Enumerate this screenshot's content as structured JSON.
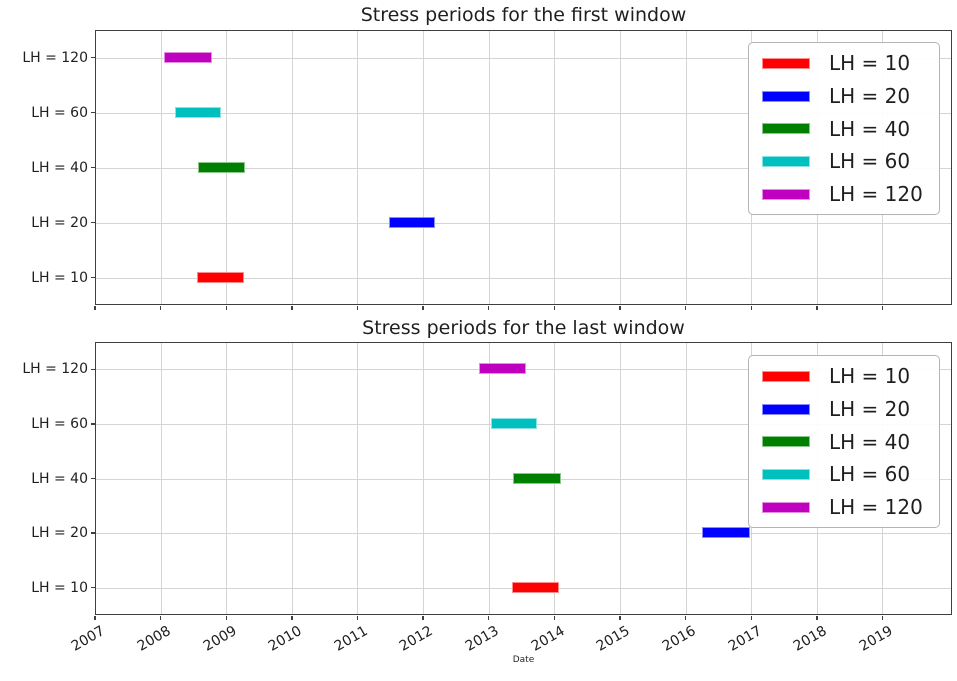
{
  "figure": {
    "xlabel": "Date",
    "background": "#ffffff",
    "grid_color": "#d4d4d4",
    "spine_color": "#3f3f3f"
  },
  "chart_data": [
    {
      "type": "bar",
      "subtype": "horizontal_interval",
      "title": "Stress periods for the first window",
      "categories": [
        "LH = 10",
        "LH = 20",
        "LH = 40",
        "LH = 60",
        "LH = 120"
      ],
      "x_ticks": [
        2007,
        2008,
        2009,
        2010,
        2011,
        2012,
        2013,
        2014,
        2015,
        2016,
        2017,
        2018,
        2019
      ],
      "xlim": [
        2007,
        2020.06
      ],
      "grid": true,
      "legend_position": "upper right",
      "show_x_tick_labels": false,
      "bars": [
        {
          "category": "LH = 10",
          "color": "#ff0000",
          "start_year": 2008.57,
          "end_year": 2009.27
        },
        {
          "category": "LH = 20",
          "color": "#0000ff",
          "start_year": 2011.51,
          "end_year": 2012.18
        },
        {
          "category": "LH = 40",
          "color": "#008000",
          "start_year": 2008.59,
          "end_year": 2009.28
        },
        {
          "category": "LH = 60",
          "color": "#00bfbf",
          "start_year": 2008.24,
          "end_year": 2008.92
        },
        {
          "category": "LH = 120",
          "color": "#bf00bf",
          "start_year": 2008.07,
          "end_year": 2008.78
        }
      ],
      "legend_entries": [
        {
          "label": "LH = 10",
          "color": "#ff0000"
        },
        {
          "label": "LH = 20",
          "color": "#0000ff"
        },
        {
          "label": "LH = 40",
          "color": "#008000"
        },
        {
          "label": "LH = 60",
          "color": "#00bfbf"
        },
        {
          "label": "LH = 120",
          "color": "#bf00bf"
        }
      ]
    },
    {
      "type": "bar",
      "subtype": "horizontal_interval",
      "title": "Stress periods for the last window",
      "categories": [
        "LH = 10",
        "LH = 20",
        "LH = 40",
        "LH = 60",
        "LH = 120"
      ],
      "x_ticks": [
        2007,
        2008,
        2009,
        2010,
        2011,
        2012,
        2013,
        2014,
        2015,
        2016,
        2017,
        2018,
        2019
      ],
      "xlim": [
        2007,
        2020.06
      ],
      "grid": true,
      "legend_position": "upper right",
      "show_x_tick_labels": true,
      "xlabel": "Date",
      "bars": [
        {
          "category": "LH = 10",
          "color": "#ff0000",
          "start_year": 2013.37,
          "end_year": 2014.06
        },
        {
          "category": "LH = 20",
          "color": "#0000ff",
          "start_year": 2016.27,
          "end_year": 2016.97
        },
        {
          "category": "LH = 40",
          "color": "#008000",
          "start_year": 2013.4,
          "end_year": 2014.1
        },
        {
          "category": "LH = 60",
          "color": "#00bfbf",
          "start_year": 2013.05,
          "end_year": 2013.73
        },
        {
          "category": "LH = 120",
          "color": "#bf00bf",
          "start_year": 2012.88,
          "end_year": 2013.56
        }
      ],
      "legend_entries": [
        {
          "label": "LH = 10",
          "color": "#ff0000"
        },
        {
          "label": "LH = 20",
          "color": "#0000ff"
        },
        {
          "label": "LH = 40",
          "color": "#008000"
        },
        {
          "label": "LH = 60",
          "color": "#00bfbf"
        },
        {
          "label": "LH = 120",
          "color": "#bf00bf"
        }
      ]
    }
  ]
}
